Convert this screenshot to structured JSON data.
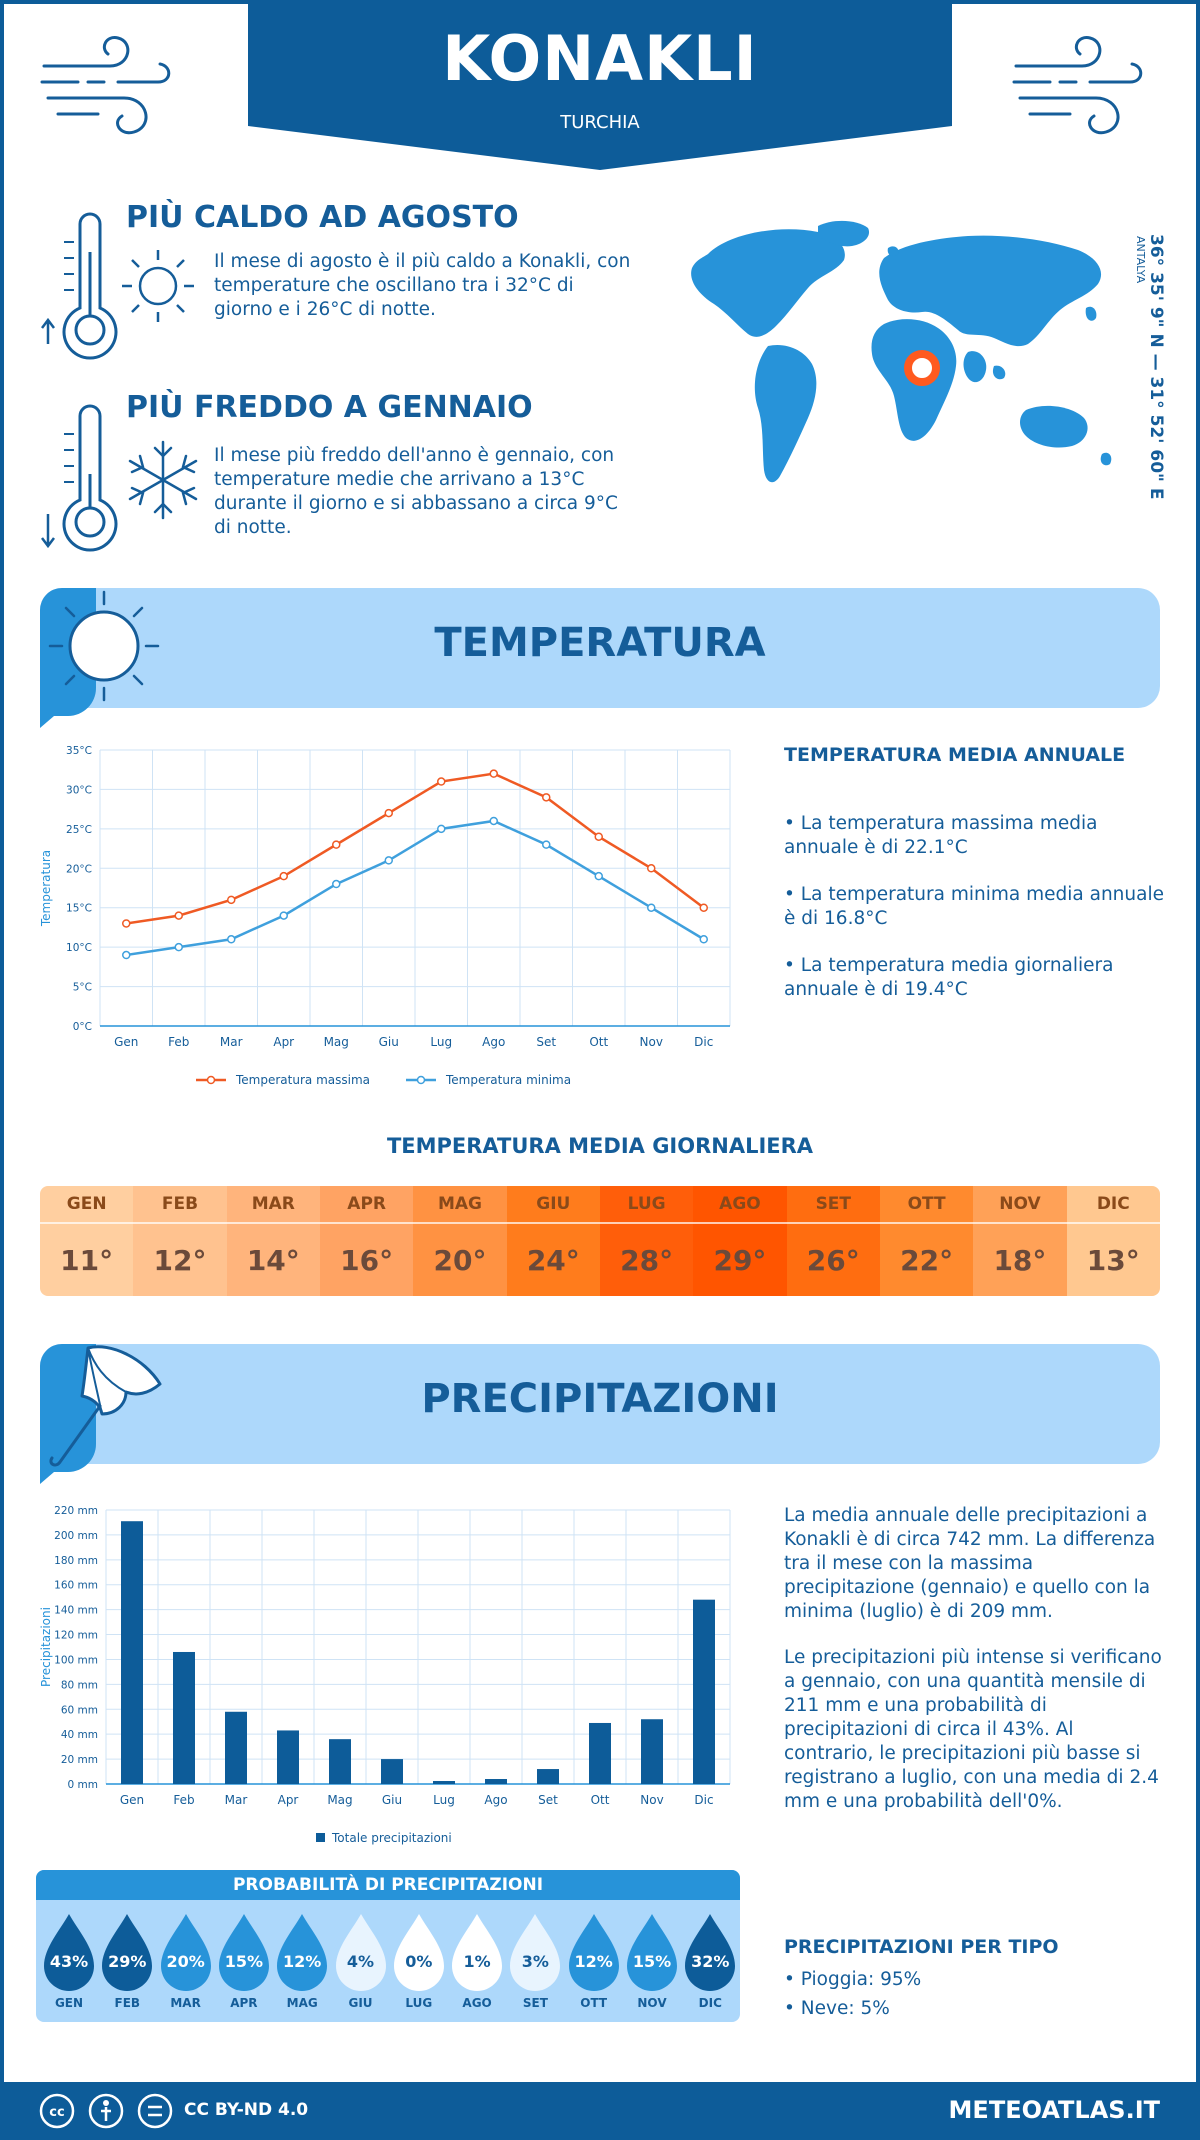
{
  "header": {
    "city": "KONAKLI",
    "country": "TURCHIA"
  },
  "location": {
    "coords": "36° 35' 9\" N — 31° 52' 60\" E",
    "region": "ANTALYA"
  },
  "facts": {
    "hottest": {
      "title": "PIÙ CALDO AD AGOSTO",
      "lines": [
        "Il mese di agosto è il più caldo a Konakli, con",
        "temperature che oscillano tra i 32°C di",
        "giorno e i 26°C di notte."
      ]
    },
    "coldest": {
      "title": "PIÙ FREDDO A GENNAIO",
      "lines": [
        "Il mese più freddo dell'anno è gennaio, con",
        "temperature medie che arrivano a 13°C",
        "durante il giorno e si abbassano a circa 9°C",
        "di notte."
      ]
    }
  },
  "temperature": {
    "section_title": "TEMPERATURA",
    "annual_title": "TEMPERATURA MEDIA ANNUALE",
    "annual_items": [
      [
        "• La temperatura massima media",
        "annuale è di 22.1°C"
      ],
      [
        "• La temperatura minima media annuale",
        "è di 16.8°C"
      ],
      [
        "• La temperatura media giornaliera",
        "annuale è di 19.4°C"
      ]
    ],
    "daily_title": "TEMPERATURA MEDIA GIORNALIERA",
    "daily": [
      {
        "month": "GEN",
        "value": "11°",
        "color": "#ffcfa0"
      },
      {
        "month": "FEB",
        "value": "12°",
        "color": "#ffc28f"
      },
      {
        "month": "MAR",
        "value": "14°",
        "color": "#ffb47c"
      },
      {
        "month": "APR",
        "value": "16°",
        "color": "#ffa363"
      },
      {
        "month": "MAG",
        "value": "20°",
        "color": "#ff9242"
      },
      {
        "month": "GIU",
        "value": "24°",
        "color": "#ff7c1c"
      },
      {
        "month": "LUG",
        "value": "28°",
        "color": "#ff5e0a"
      },
      {
        "month": "AGO",
        "value": "29°",
        "color": "#ff5500"
      },
      {
        "month": "SET",
        "value": "26°",
        "color": "#ff6d10"
      },
      {
        "month": "OTT",
        "value": "22°",
        "color": "#ff8a2e"
      },
      {
        "month": "NOV",
        "value": "18°",
        "color": "#ffa157"
      },
      {
        "month": "DIC",
        "value": "13°",
        "color": "#ffc890"
      }
    ]
  },
  "precipitation": {
    "section_title": "PRECIPITAZIONI",
    "para1": [
      "La media annuale delle precipitazioni a",
      "Konakli è di circa 742 mm. La differenza",
      "tra il mese con la massima",
      "precipitazione (gennaio) e quello con la",
      "minima (luglio) è di 209 mm."
    ],
    "para2": [
      "Le precipitazioni più intense si verificano",
      "a gennaio, con una quantità mensile di",
      "211 mm e una probabilità di",
      "precipitazioni di circa il 43%. Al",
      "contrario, le precipitazioni più basse si",
      "registrano a luglio, con una media di 2.4",
      "mm e una probabilità dell'0%."
    ],
    "prob_title": "PROBABILITÀ DI PRECIPITAZIONI",
    "prob": [
      {
        "month": "GEN",
        "value": "43%",
        "fill": "#0d5c99",
        "text": "#ffffff"
      },
      {
        "month": "FEB",
        "value": "29%",
        "fill": "#0d5c99",
        "text": "#ffffff"
      },
      {
        "month": "MAR",
        "value": "20%",
        "fill": "#2793d9",
        "text": "#ffffff"
      },
      {
        "month": "APR",
        "value": "15%",
        "fill": "#2793d9",
        "text": "#ffffff"
      },
      {
        "month": "MAG",
        "value": "12%",
        "fill": "#2793d9",
        "text": "#ffffff"
      },
      {
        "month": "GIU",
        "value": "4%",
        "fill": "#e8f4fe",
        "text": "#155d99"
      },
      {
        "month": "LUG",
        "value": "0%",
        "fill": "#ffffff",
        "text": "#155d99"
      },
      {
        "month": "AGO",
        "value": "1%",
        "fill": "#ffffff",
        "text": "#155d99"
      },
      {
        "month": "SET",
        "value": "3%",
        "fill": "#e8f4fe",
        "text": "#155d99"
      },
      {
        "month": "OTT",
        "value": "12%",
        "fill": "#2793d9",
        "text": "#ffffff"
      },
      {
        "month": "NOV",
        "value": "15%",
        "fill": "#2793d9",
        "text": "#ffffff"
      },
      {
        "month": "DIC",
        "value": "32%",
        "fill": "#0d5c99",
        "text": "#ffffff"
      }
    ],
    "type_title": "PRECIPITAZIONI PER TIPO",
    "types": [
      "• Pioggia: 95%",
      "• Neve: 5%"
    ]
  },
  "footer": {
    "license": "CC BY-ND 4.0",
    "site": "METEOATLAS.IT"
  },
  "colors": {
    "brand": "#0d5c99",
    "light": "#add8fb",
    "accent": "#2793d9",
    "max_line": "#ef5a24",
    "min_line": "#3fa0dd"
  },
  "chart_data": [
    {
      "type": "line",
      "ylabel": "Temperatura",
      "categories": [
        "Gen",
        "Feb",
        "Mar",
        "Apr",
        "Mag",
        "Giu",
        "Lug",
        "Ago",
        "Set",
        "Ott",
        "Nov",
        "Dic"
      ],
      "yticks": [
        "0°C",
        "5°C",
        "10°C",
        "15°C",
        "20°C",
        "25°C",
        "30°C",
        "35°C"
      ],
      "ylim": [
        0,
        35
      ],
      "grid": true,
      "legend": "bottom",
      "series": [
        {
          "name": "Temperatura massima",
          "values": [
            13,
            14,
            16,
            19,
            23,
            27,
            31,
            32,
            29,
            24,
            20,
            15
          ]
        },
        {
          "name": "Temperatura minima",
          "values": [
            9,
            10,
            11,
            14,
            18,
            21,
            25,
            26,
            23,
            19,
            15,
            11
          ]
        }
      ]
    },
    {
      "type": "bar",
      "ylabel": "Precipitazioni",
      "categories": [
        "Gen",
        "Feb",
        "Mar",
        "Apr",
        "Mag",
        "Giu",
        "Lug",
        "Ago",
        "Set",
        "Ott",
        "Nov",
        "Dic"
      ],
      "yticks": [
        "0 mm",
        "20 mm",
        "40 mm",
        "60 mm",
        "80 mm",
        "100 mm",
        "120 mm",
        "140 mm",
        "160 mm",
        "180 mm",
        "200 mm",
        "220 mm"
      ],
      "ylim": [
        0,
        220
      ],
      "grid": true,
      "legend": "bottom",
      "series": [
        {
          "name": "Totale precipitazioni",
          "values": [
            211,
            106,
            58,
            43,
            36,
            20,
            2.4,
            4,
            12,
            49,
            52,
            148
          ]
        }
      ]
    }
  ]
}
